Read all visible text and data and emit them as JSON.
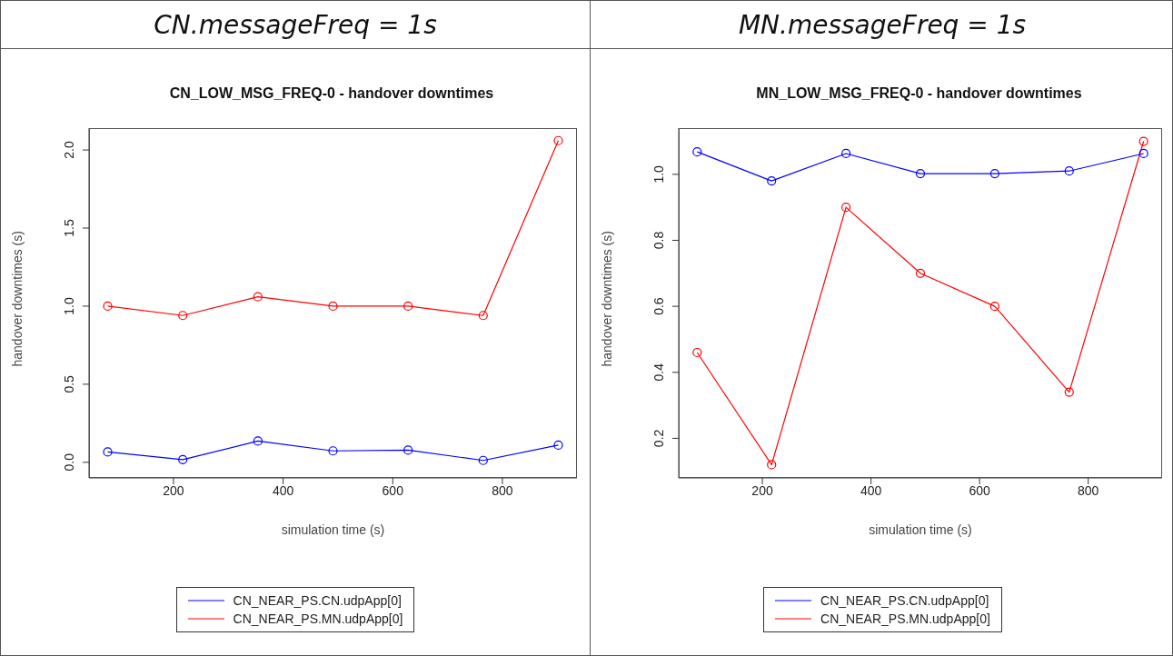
{
  "chart_data": [
    {
      "type": "line",
      "annotations": [
        "CN.messageFreq = 1s"
      ],
      "title": "CN_LOW_MSG_FREQ-0 - handover downtimes",
      "xlabel": "simulation time (s)",
      "ylabel": "handover downtimes (s)",
      "x": [
        80,
        217,
        354,
        491,
        628,
        765,
        902
      ],
      "xlim": [
        46,
        936
      ],
      "xticks": [
        200,
        400,
        600,
        800
      ],
      "ylim": [
        -0.1,
        2.14
      ],
      "yticks": [
        {
          "value": 0,
          "label": "0.0"
        },
        0.5,
        {
          "value": 1,
          "label": "1.0"
        },
        1.5,
        {
          "value": 2,
          "label": "2.0"
        }
      ],
      "marker": "circle",
      "grid": false,
      "legend": "bottom",
      "series": [
        {
          "name": "CN_NEAR_PS.CN.udpApp[0]",
          "color": "#0000ff",
          "values": [
            0.066,
            0.017,
            0.136,
            0.073,
            0.078,
            0.012,
            0.11
          ]
        },
        {
          "name": "CN_NEAR_PS.MN.udpApp[0]",
          "color": "#ff0000",
          "values": [
            1.0,
            0.94,
            1.06,
            1.0,
            1.0,
            0.94,
            2.06
          ]
        }
      ]
    },
    {
      "type": "line",
      "annotations": [
        "MN.messageFreq = 1s"
      ],
      "title": "MN_LOW_MSG_FREQ-0 - handover downtimes",
      "xlabel": "simulation time (s)",
      "ylabel": "handover downtimes (s)",
      "x": [
        80,
        217,
        354,
        491,
        628,
        765,
        902
      ],
      "xlim": [
        46,
        936
      ],
      "xticks": [
        200,
        400,
        600,
        800
      ],
      "ylim": [
        0.08,
        1.14
      ],
      "yticks": [
        0.2,
        0.4,
        0.6,
        0.8,
        {
          "value": 1,
          "label": "1.0"
        }
      ],
      "marker": "circle",
      "grid": false,
      "legend": "bottom",
      "series": [
        {
          "name": "CN_NEAR_PS.CN.udpApp[0]",
          "color": "#0000ff",
          "values": [
            1.068,
            0.98,
            1.063,
            1.002,
            1.002,
            1.01,
            1.063
          ]
        },
        {
          "name": "CN_NEAR_PS.MN.udpApp[0]",
          "color": "#ff0000",
          "values": [
            0.46,
            0.12,
            0.9,
            0.7,
            0.6,
            0.34,
            1.1
          ]
        }
      ]
    }
  ]
}
